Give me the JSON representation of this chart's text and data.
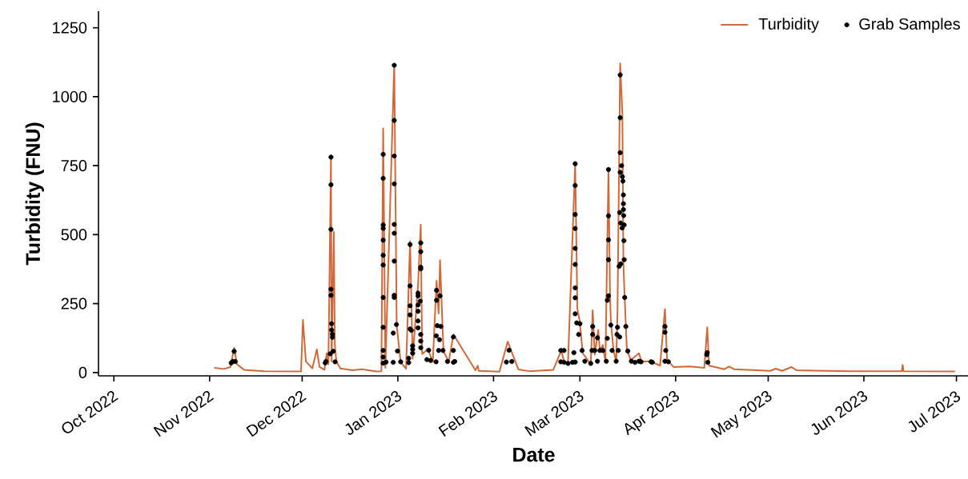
{
  "chart_data": {
    "type": "line",
    "xlabel": "Date",
    "ylabel": "Turbidity (FNU)",
    "xlim": [
      "2022-09-26",
      "2023-07-05"
    ],
    "ylim": [
      -12,
      1310
    ],
    "xticks": [
      {
        "value": "2022-10-01",
        "label": "Oct 2022"
      },
      {
        "value": "2022-11-01",
        "label": "Nov 2022"
      },
      {
        "value": "2022-12-01",
        "label": "Dec 2022"
      },
      {
        "value": "2023-01-01",
        "label": "Jan 2023"
      },
      {
        "value": "2023-02-01",
        "label": "Feb 2023"
      },
      {
        "value": "2023-03-01",
        "label": "Mar 2023"
      },
      {
        "value": "2023-04-01",
        "label": "Apr 2023"
      },
      {
        "value": "2023-05-01",
        "label": "May 2023"
      },
      {
        "value": "2023-06-01",
        "label": "Jun 2023"
      },
      {
        "value": "2023-07-01",
        "label": "Jul 2023"
      }
    ],
    "yticks": [
      0,
      250,
      500,
      750,
      1000,
      1250
    ],
    "grid": false,
    "legend": "top right",
    "line_style": "solid",
    "series": [
      {
        "name": "Turbidity",
        "color": "#d0683a",
        "x": [
          "2022-11-02T12:00",
          "2022-11-05T15:00",
          "2022-11-07T18:00",
          "2022-11-08T23:00",
          "2022-11-09T20:00",
          "2022-11-12T04:00",
          "2022-11-18T16:00",
          "2022-11-30T15:00",
          "2022-12-01T06:00",
          "2022-12-02T05:00",
          "2022-12-04T07:00",
          "2022-12-05T18:00",
          "2022-12-06T15:00",
          "2022-12-08T05:00",
          "2022-12-08T23:00",
          "2022-12-09T12:00",
          "2022-12-10T08:00",
          "2022-12-10T13:00",
          "2022-12-11T06:00",
          "2022-12-11T14:00",
          "2022-12-12T02:00",
          "2022-12-13T09:00",
          "2022-12-17T07:00",
          "2022-12-20T08:00",
          "2022-12-25T02:00",
          "2022-12-26T16:00",
          "2022-12-27T06:00",
          "2022-12-27T23:00",
          "2022-12-30T20:00",
          "2022-12-31T15:00",
          "2023-01-01T22:00",
          "2023-01-03T16:00",
          "2023-01-04T23:00",
          "2023-01-05T19:00",
          "2023-01-07T13:00",
          "2023-01-08T10:00",
          "2023-01-08T21:00",
          "2023-01-10T18:00",
          "2023-01-12T08:00",
          "2023-01-13T13:00",
          "2023-01-14T05:00",
          "2023-01-14T16:00",
          "2023-01-15T19:00",
          "2023-01-17T12:00",
          "2023-01-19T00:00",
          "2023-01-26T03:00",
          "2023-01-26T21:00",
          "2023-01-27T05:00",
          "2023-02-02T22:00",
          "2023-02-05T14:00",
          "2023-02-09T02:00",
          "2023-02-12T13:00",
          "2023-02-20T09:00",
          "2023-02-22T23:00",
          "2023-02-23T20:00",
          "2023-02-25T03:00",
          "2023-02-27T11:00",
          "2023-02-28T04:00",
          "2023-02-28T21:00",
          "2023-03-01T22:00",
          "2023-03-04T12:00",
          "2023-03-05T03:00",
          "2023-03-05T19:00",
          "2023-03-06T22:00",
          "2023-03-07T11:00",
          "2023-03-08T10:00",
          "2023-03-09T06:00",
          "2023-03-10T06:00",
          "2023-03-10T18:00",
          "2023-03-11T00:00",
          "2023-03-11T21:00",
          "2023-03-12T18:00",
          "2023-03-13T04:00",
          "2023-03-14T01:00",
          "2023-03-14T18:00",
          "2023-03-15T02:00",
          "2023-03-15T12:00",
          "2023-03-16T05:00",
          "2023-03-17T12:00",
          "2023-03-20T03:00",
          "2023-03-20T23:00",
          "2023-03-24T01:00",
          "2023-03-26T23:00",
          "2023-03-28T13:00",
          "2023-03-29T06:00",
          "2023-03-31T09:00",
          "2023-04-05T14:00",
          "2023-04-10T07:00",
          "2023-04-11T06:00",
          "2023-04-11T20:00",
          "2023-04-16T19:00",
          "2023-04-18T08:00",
          "2023-04-19T22:00",
          "2023-05-01T15:00",
          "2023-05-03T11:00",
          "2023-05-05T12:00",
          "2023-05-08T14:00",
          "2023-05-10T05:00",
          "2023-05-27T16:00",
          "2023-06-13T07:00",
          "2023-06-13T14:00",
          "2023-06-13T20:00",
          "2023-06-30T12:00"
        ],
        "values": [
          17,
          13,
          20,
          90,
          30,
          10,
          5,
          4,
          191,
          40,
          15,
          84,
          20,
          10,
          70,
          30,
          781,
          40,
          510,
          100,
          40,
          15,
          8,
          12,
          4,
          5,
          885,
          17,
          1118,
          172,
          37,
          14,
          476,
          50,
          319,
          537,
          67,
          85,
          39,
          333,
          214,
          407,
          77,
          39,
          138,
          8,
          25,
          6,
          3,
          112,
          11,
          5,
          10,
          80,
          40,
          35,
          757,
          230,
          190,
          70,
          30,
          226,
          65,
          154,
          80,
          100,
          40,
          738,
          278,
          190,
          80,
          40,
          220,
          1121,
          937,
          394,
          269,
          82,
          45,
          70,
          40,
          40,
          25,
          230,
          45,
          20,
          22,
          17,
          164,
          25,
          12,
          22,
          12,
          6,
          14,
          6,
          20,
          8,
          5,
          5,
          28,
          5,
          4
        ]
      },
      {
        "name": "Grab Samples",
        "type": "scatter",
        "color": "#000000",
        "x": [
          "2022-11-08T00:00",
          "2022-11-08T12:00",
          "2022-11-08T23:00",
          "2022-11-09T07:00",
          "2022-12-08T11:00",
          "2022-12-08T17:00",
          "2022-12-10T02:00",
          "2022-12-10T08:00",
          "2022-12-10T08:00",
          "2022-12-10T08:00",
          "2022-12-10T08:00",
          "2022-12-10T08:00",
          "2022-12-10T13:00",
          "2022-12-10T13:00",
          "2022-12-10T19:00",
          "2022-12-10T19:00",
          "2022-12-11T01:00",
          "2022-12-11T16:00",
          "2022-12-27T06:00",
          "2022-12-27T06:00",
          "2022-12-27T06:00",
          "2022-12-27T06:00",
          "2022-12-27T06:00",
          "2022-12-27T06:00",
          "2022-12-27T06:00",
          "2022-12-27T06:00",
          "2022-12-27T06:00",
          "2022-12-27T06:00",
          "2022-12-27T06:00",
          "2022-12-27T06:00",
          "2022-12-28T04:00",
          "2022-12-30T12:00",
          "2022-12-30T12:00",
          "2022-12-30T20:00",
          "2022-12-30T20:00",
          "2022-12-30T20:00",
          "2022-12-30T20:00",
          "2022-12-30T20:00",
          "2022-12-30T20:00",
          "2022-12-30T20:00",
          "2022-12-30T20:00",
          "2022-12-30T20:00",
          "2022-12-31T13:00",
          "2022-12-31T21:00",
          "2023-01-01T22:00",
          "2023-01-04T12:00",
          "2023-01-04T12:00",
          "2023-01-04T23:00",
          "2023-01-04T23:00",
          "2023-01-04T23:00",
          "2023-01-04T23:00",
          "2023-01-04T23:00",
          "2023-01-05T09:00",
          "2023-01-05T19:00",
          "2023-01-05T19:00",
          "2023-01-05T19:00",
          "2023-01-07T13:00",
          "2023-01-07T13:00",
          "2023-01-07T13:00",
          "2023-01-07T13:00",
          "2023-01-07T13:00",
          "2023-01-07T13:00",
          "2023-01-08T06:00",
          "2023-01-08T10:00",
          "2023-01-08T10:00",
          "2023-01-08T10:00",
          "2023-01-08T10:00",
          "2023-01-08T10:00",
          "2023-01-08T10:00",
          "2023-01-08T10:00",
          "2023-01-10T10:00",
          "2023-01-11T00:00",
          "2023-01-11T15:00",
          "2023-01-13T09:00",
          "2023-01-13T11:00",
          "2023-01-13T13:00",
          "2023-01-13T13:00",
          "2023-01-13T19:00",
          "2023-01-14T05:00",
          "2023-01-14T12:00",
          "2023-01-14T16:00",
          "2023-01-14T22:00",
          "2023-01-15T15:00",
          "2023-01-17T02:00",
          "2023-01-19T00:00",
          "2023-01-19T00:00",
          "2023-01-19T00:00",
          "2023-01-19T10:00",
          "2023-02-05T04:00",
          "2023-02-06T01:00",
          "2023-02-06T22:00",
          "2023-02-22T19:00",
          "2023-02-22T19:00",
          "2023-02-23T20:00",
          "2023-02-23T20:00",
          "2023-02-25T03:00",
          "2023-02-26T14:00",
          "2023-02-27T01:00",
          "2023-02-27T11:00",
          "2023-02-27T11:00",
          "2023-02-27T11:00",
          "2023-02-27T11:00",
          "2023-02-27T11:00",
          "2023-02-27T11:00",
          "2023-02-27T11:00",
          "2023-02-27T11:00",
          "2023-02-27T11:00",
          "2023-02-27T11:00",
          "2023-02-27T23:00",
          "2023-02-28T14:00",
          "2023-03-01T00:00",
          "2023-03-01T17:00",
          "2023-03-02T14:00",
          "2023-03-04T12:00",
          "2023-03-04T22:00",
          "2023-03-05T03:00",
          "2023-03-05T03:00",
          "2023-03-05T19:00",
          "2023-03-06T16:00",
          "2023-03-06T16:00",
          "2023-03-07T11:00",
          "2023-03-08T10:00",
          "2023-03-09T13:00",
          "2023-03-09T21:00",
          "2023-03-09T21:00",
          "2023-03-10T06:00",
          "2023-03-10T06:00",
          "2023-03-10T06:00",
          "2023-03-10T06:00",
          "2023-03-10T06:00",
          "2023-03-11T00:00",
          "2023-03-11T10:00",
          "2023-03-12T18:00",
          "2023-03-13T00:00",
          "2023-03-13T04:00",
          "2023-03-13T10:00",
          "2023-03-13T17:00",
          "2023-03-13T21:00",
          "2023-03-13T21:00",
          "2023-03-14T01:00",
          "2023-03-14T01:00",
          "2023-03-14T01:00",
          "2023-03-14T01:00",
          "2023-03-14T05:00",
          "2023-03-14T05:00",
          "2023-03-14T12:00",
          "2023-03-14T16:00",
          "2023-03-14T18:00",
          "2023-03-14T22:00",
          "2023-03-15T02:00",
          "2023-03-15T02:00",
          "2023-03-15T02:00",
          "2023-03-15T04:00",
          "2023-03-15T06:00",
          "2023-03-15T08:00",
          "2023-03-15T08:00",
          "2023-03-15T12:00",
          "2023-03-15T21:00",
          "2023-03-16T12:00",
          "2023-03-17T16:00",
          "2023-03-18T20:00",
          "2023-03-20T03:00",
          "2023-03-20T19:00",
          "2023-03-24T01:00",
          "2023-03-24T11:00",
          "2023-03-28T13:00",
          "2023-03-28T13:00",
          "2023-03-28T13:00",
          "2023-03-28T19:00",
          "2023-03-29T16:00",
          "2023-04-11T02:00",
          "2023-04-11T06:00",
          "2023-04-11T10:00"
        ],
        "values": [
          35,
          40,
          77,
          40,
          35,
          40,
          68,
          781,
          681,
          519,
          302,
          280,
          177,
          154,
          139,
          128,
          77,
          39,
          791,
          704,
          535,
          523,
          480,
          425,
          390,
          272,
          164,
          80,
          56,
          34,
          38,
          143,
          37,
          1114,
          914,
          785,
          684,
          537,
          505,
          404,
          280,
          272,
          174,
          78,
          39,
          52,
          36,
          464,
          314,
          242,
          209,
          158,
          153,
          97,
          84,
          70,
          288,
          278,
          245,
          222,
          187,
          162,
          259,
          470,
          438,
          382,
          376,
          138,
          114,
          90,
          47,
          81,
          44,
          39,
          133,
          298,
          262,
          170,
          80,
          119,
          278,
          167,
          80,
          40,
          129,
          80,
          37,
          40,
          38,
          81,
          40,
          80,
          39,
          80,
          37,
          33,
          37,
          72,
          757,
          678,
          573,
          522,
          450,
          392,
          307,
          271,
          213,
          38,
          180,
          138,
          177,
          80,
          41,
          33,
          80,
          167,
          138,
          80,
          126,
          41,
          80,
          80,
          41,
          124,
          262,
          736,
          568,
          481,
          409,
          278,
          172,
          80,
          41,
          138,
          164,
          80,
          385,
          129,
          580,
          1079,
          924,
          797,
          726,
          542,
          394,
          750,
          524,
          710,
          694,
          644,
          612,
          591,
          569,
          478,
          409,
          535,
          272,
          167,
          78,
          41,
          37,
          41,
          39,
          39,
          37,
          167,
          146,
          41,
          80,
          39,
          65,
          72,
          37
        ]
      }
    ]
  }
}
